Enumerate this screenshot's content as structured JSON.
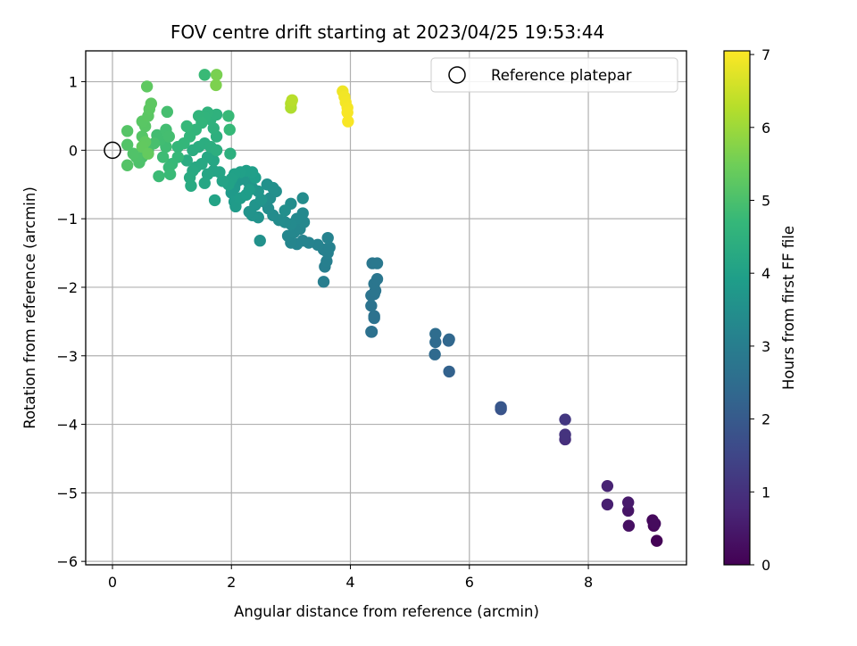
{
  "chart_data": {
    "type": "scatter",
    "title": "FOV centre drift starting at 2023/04/25 19:53:44",
    "xlabel": "Angular distance from reference (arcmin)",
    "ylabel": "Rotation from reference (arcmin)",
    "xlim": [
      -0.45,
      9.65
    ],
    "ylim": [
      -6.05,
      1.45
    ],
    "x_ticks": [
      0,
      2,
      4,
      6,
      8
    ],
    "y_ticks": [
      1,
      0,
      -1,
      -2,
      -3,
      -4,
      -5,
      -6
    ],
    "x_tick_labels": [
      "0",
      "2",
      "4",
      "6",
      "8"
    ],
    "y_tick_labels": [
      "1",
      "0",
      "−1",
      "−2",
      "−3",
      "−4",
      "−5",
      "−6"
    ],
    "grid": true,
    "legend": {
      "position": "top-right",
      "entries": [
        "Reference platepar"
      ]
    },
    "reference_point": {
      "x": 0,
      "y": 0
    },
    "colorbar": {
      "label": "Hours from first FF file",
      "range": [
        0,
        7.05
      ],
      "ticks": [
        0,
        1,
        2,
        3,
        4,
        5,
        6,
        7
      ],
      "tick_labels": [
        "0",
        "1",
        "2",
        "3",
        "4",
        "5",
        "6",
        "7"
      ],
      "colormap": "viridis",
      "colormap_stops": [
        "#440154",
        "#482878",
        "#3e4989",
        "#31688e",
        "#26828e",
        "#1f9e89",
        "#35b779",
        "#6ece58",
        "#b5de2b",
        "#fde725"
      ]
    },
    "series": [
      {
        "points": [
          [
            9.15,
            -5.7,
            0.05
          ],
          [
            9.1,
            -5.48,
            0.1
          ],
          [
            9.08,
            -5.4,
            0.15
          ],
          [
            9.12,
            -5.45,
            0.2
          ],
          [
            8.68,
            -5.48,
            0.3
          ],
          [
            8.67,
            -5.26,
            0.4
          ],
          [
            8.67,
            -5.14,
            0.5
          ],
          [
            8.32,
            -5.17,
            0.6
          ],
          [
            8.32,
            -4.9,
            0.7
          ],
          [
            7.61,
            -4.22,
            0.95
          ],
          [
            7.61,
            -4.15,
            1.05
          ],
          [
            7.61,
            -3.93,
            1.15
          ],
          [
            6.53,
            -3.78,
            1.8
          ],
          [
            6.53,
            -3.75,
            1.9
          ],
          [
            5.66,
            -3.23,
            2.2
          ],
          [
            5.65,
            -2.78,
            2.3
          ],
          [
            5.66,
            -2.76,
            2.35
          ],
          [
            5.42,
            -2.98,
            2.4
          ],
          [
            5.43,
            -2.8,
            2.45
          ],
          [
            5.43,
            -2.68,
            2.5
          ],
          [
            4.35,
            -2.65,
            2.6
          ],
          [
            4.36,
            -2.65,
            2.62
          ],
          [
            4.4,
            -2.45,
            2.64
          ],
          [
            4.4,
            -2.42,
            2.66
          ],
          [
            4.35,
            -2.27,
            2.68
          ],
          [
            4.35,
            -2.12,
            2.7
          ],
          [
            4.4,
            -2.1,
            2.72
          ],
          [
            4.42,
            -2.05,
            2.74
          ],
          [
            4.4,
            -1.95,
            2.76
          ],
          [
            4.45,
            -1.88,
            2.78
          ],
          [
            4.37,
            -1.65,
            2.8
          ],
          [
            4.45,
            -1.65,
            2.82
          ],
          [
            3.55,
            -1.92,
            3.0
          ],
          [
            3.57,
            -1.7,
            3.02
          ],
          [
            3.6,
            -1.62,
            3.04
          ],
          [
            3.62,
            -1.5,
            3.06
          ],
          [
            3.55,
            -1.45,
            3.08
          ],
          [
            3.65,
            -1.42,
            3.1
          ],
          [
            3.62,
            -1.28,
            3.12
          ],
          [
            3.45,
            -1.38,
            3.14
          ],
          [
            3.3,
            -1.35,
            3.16
          ],
          [
            3.2,
            -1.32,
            3.18
          ],
          [
            3.1,
            -1.37,
            3.2
          ],
          [
            3.0,
            -1.35,
            3.22
          ],
          [
            2.95,
            -1.25,
            3.24
          ],
          [
            3.05,
            -1.2,
            3.26
          ],
          [
            3.15,
            -1.15,
            3.28
          ],
          [
            3.22,
            -1.05,
            3.3
          ],
          [
            3.2,
            -0.92,
            3.32
          ],
          [
            3.1,
            -1.0,
            3.34
          ],
          [
            3.0,
            -1.08,
            3.36
          ],
          [
            2.9,
            -1.05,
            3.38
          ],
          [
            2.8,
            -1.02,
            3.4
          ],
          [
            2.7,
            -0.95,
            3.42
          ],
          [
            2.62,
            -0.85,
            3.44
          ],
          [
            2.55,
            -0.75,
            3.46
          ],
          [
            2.65,
            -0.7,
            3.48
          ],
          [
            2.75,
            -0.6,
            3.5
          ],
          [
            2.7,
            -0.55,
            3.52
          ],
          [
            2.6,
            -0.5,
            3.54
          ],
          [
            3.2,
            -0.7,
            3.4
          ],
          [
            3.0,
            -0.78,
            3.45
          ],
          [
            2.9,
            -0.88,
            3.5
          ],
          [
            2.48,
            -1.32,
            3.55
          ],
          [
            2.45,
            -0.98,
            3.58
          ],
          [
            2.35,
            -0.95,
            3.6
          ],
          [
            2.3,
            -0.9,
            3.62
          ],
          [
            2.4,
            -0.8,
            3.64
          ],
          [
            2.5,
            -0.72,
            3.66
          ],
          [
            2.45,
            -0.6,
            3.68
          ],
          [
            2.35,
            -0.55,
            3.7
          ],
          [
            2.3,
            -0.48,
            3.72
          ],
          [
            2.2,
            -0.42,
            3.74
          ],
          [
            2.1,
            -0.45,
            3.76
          ],
          [
            2.05,
            -0.55,
            3.78
          ],
          [
            2.0,
            -0.62,
            3.8
          ],
          [
            2.05,
            -0.75,
            3.82
          ],
          [
            2.07,
            -0.82,
            3.84
          ],
          [
            2.15,
            -0.7,
            3.86
          ],
          [
            2.25,
            -0.65,
            3.88
          ],
          [
            2.3,
            -0.58,
            3.9
          ],
          [
            2.4,
            -0.4,
            3.92
          ],
          [
            2.35,
            -0.32,
            3.94
          ],
          [
            2.25,
            -0.3,
            3.96
          ],
          [
            2.15,
            -0.32,
            3.98
          ],
          [
            2.05,
            -0.35,
            4.0
          ],
          [
            2.0,
            -0.42,
            4.02
          ],
          [
            1.95,
            -0.5,
            4.04
          ],
          [
            1.72,
            -0.73,
            4.06
          ],
          [
            1.85,
            -0.45,
            4.08
          ],
          [
            1.8,
            -0.32,
            4.1
          ],
          [
            1.7,
            -0.3,
            4.12
          ],
          [
            1.6,
            -0.35,
            4.14
          ],
          [
            1.55,
            -0.48,
            4.16
          ],
          [
            1.7,
            -0.15,
            4.18
          ],
          [
            1.6,
            -0.1,
            4.2
          ],
          [
            1.5,
            -0.2,
            4.22
          ],
          [
            1.4,
            -0.25,
            4.24
          ],
          [
            1.35,
            -0.3,
            4.26
          ],
          [
            1.32,
            -0.52,
            4.28
          ],
          [
            1.3,
            -0.4,
            4.3
          ],
          [
            1.25,
            -0.15,
            4.32
          ],
          [
            1.35,
            0.0,
            4.34
          ],
          [
            1.45,
            0.05,
            4.36
          ],
          [
            1.55,
            0.1,
            4.38
          ],
          [
            1.65,
            0.05,
            4.4
          ],
          [
            1.75,
            0.0,
            4.42
          ],
          [
            1.98,
            -0.05,
            4.44
          ],
          [
            1.75,
            0.2,
            4.46
          ],
          [
            1.7,
            0.32,
            4.48
          ],
          [
            1.65,
            0.45,
            4.5
          ],
          [
            1.75,
            0.52,
            4.52
          ],
          [
            1.6,
            0.55,
            4.54
          ],
          [
            1.55,
            0.48,
            4.56
          ],
          [
            1.45,
            0.5,
            4.58
          ],
          [
            1.5,
            0.4,
            4.6
          ],
          [
            1.4,
            0.3,
            4.62
          ],
          [
            1.3,
            0.2,
            4.64
          ],
          [
            1.2,
            0.1,
            4.66
          ],
          [
            1.1,
            0.05,
            4.68
          ],
          [
            1.25,
            0.35,
            4.7
          ],
          [
            1.97,
            0.3,
            4.72
          ],
          [
            1.95,
            0.5,
            4.74
          ],
          [
            1.55,
            1.1,
            4.76
          ],
          [
            1.1,
            -0.1,
            4.7
          ],
          [
            1.0,
            -0.2,
            4.72
          ],
          [
            0.95,
            -0.25,
            4.74
          ],
          [
            0.97,
            -0.35,
            4.76
          ],
          [
            0.78,
            -0.38,
            4.8
          ],
          [
            0.85,
            -0.1,
            4.82
          ],
          [
            0.9,
            0.05,
            4.84
          ],
          [
            0.8,
            0.15,
            4.86
          ],
          [
            0.75,
            0.22,
            4.88
          ],
          [
            0.9,
            0.3,
            4.9
          ],
          [
            0.95,
            0.2,
            4.92
          ],
          [
            0.92,
            0.56,
            4.94
          ],
          [
            0.7,
            0.1,
            4.96
          ],
          [
            0.6,
            0.0,
            4.98
          ],
          [
            0.55,
            -0.05,
            5.0
          ],
          [
            0.5,
            -0.1,
            5.02
          ],
          [
            0.45,
            -0.18,
            5.04
          ],
          [
            0.4,
            -0.1,
            5.06
          ],
          [
            0.35,
            -0.05,
            5.08
          ],
          [
            0.25,
            0.08,
            5.1
          ],
          [
            0.25,
            -0.22,
            5.12
          ],
          [
            0.25,
            0.28,
            5.14
          ],
          [
            0.5,
            0.2,
            5.16
          ],
          [
            0.55,
            0.35,
            5.18
          ],
          [
            0.5,
            0.42,
            5.2
          ],
          [
            0.6,
            0.5,
            5.22
          ],
          [
            0.62,
            0.6,
            5.24
          ],
          [
            0.65,
            0.68,
            5.26
          ],
          [
            0.58,
            0.93,
            5.28
          ],
          [
            0.55,
            0.12,
            5.3
          ],
          [
            0.5,
            0.05,
            5.32
          ],
          [
            0.6,
            -0.05,
            5.34
          ],
          [
            1.75,
            1.1,
            5.6
          ],
          [
            1.74,
            0.95,
            5.65
          ],
          [
            3.0,
            0.62,
            6.2
          ],
          [
            3.0,
            0.68,
            6.25
          ],
          [
            3.02,
            0.73,
            6.3
          ],
          [
            3.87,
            0.86,
            6.9
          ],
          [
            3.9,
            0.78,
            6.92
          ],
          [
            3.92,
            0.7,
            6.94
          ],
          [
            3.95,
            0.62,
            6.96
          ],
          [
            3.95,
            0.55,
            6.98
          ],
          [
            3.96,
            0.42,
            7.0
          ]
        ]
      }
    ]
  }
}
